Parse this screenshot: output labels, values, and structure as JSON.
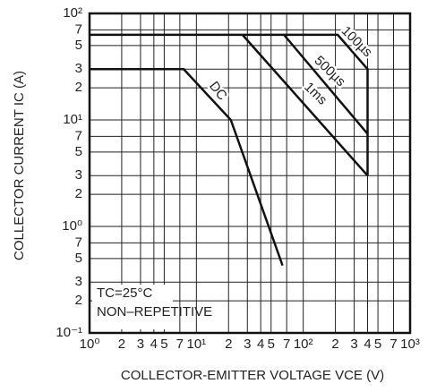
{
  "chart_data": {
    "type": "line",
    "x_label": "COLLECTOR-EMITTER VOLTAGE   VCE (V)",
    "y_label": "COLLECTOR CURRENT   IC (A)",
    "annotations": [
      "TC=25°C",
      "NON–REPETITIVE"
    ],
    "xscale": "log",
    "yscale": "log",
    "grid": true,
    "color": "#111111",
    "xlim": [
      1,
      1000
    ],
    "ylim": [
      0.1,
      100
    ],
    "xticks": [
      {
        "value": 1,
        "label": "10⁰"
      },
      2,
      3,
      4,
      5,
      7,
      {
        "value": 10,
        "label": "10¹"
      },
      {
        "value": 20,
        "label": "2"
      },
      {
        "value": 30,
        "label": "3"
      },
      {
        "value": 40,
        "label": "4"
      },
      {
        "value": 50,
        "label": "5"
      },
      {
        "value": 70,
        "label": "7"
      },
      {
        "value": 100,
        "label": "10²"
      },
      {
        "value": 200,
        "label": "2"
      },
      {
        "value": 300,
        "label": "3"
      },
      {
        "value": 400,
        "label": "4"
      },
      {
        "value": 500,
        "label": "5"
      },
      {
        "value": 700,
        "label": "7"
      },
      {
        "value": 1000,
        "label": "10³"
      }
    ],
    "yticks": [
      {
        "value": 0.1,
        "label": "10⁻¹"
      },
      {
        "value": 0.2,
        "label": "2"
      },
      {
        "value": 0.3,
        "label": "3"
      },
      {
        "value": 0.5,
        "label": "5"
      },
      {
        "value": 0.7,
        "label": "7"
      },
      {
        "value": 1,
        "label": "10⁰"
      },
      2,
      3,
      5,
      7,
      {
        "value": 10,
        "label": "10¹"
      },
      {
        "value": 20,
        "label": "2"
      },
      {
        "value": 30,
        "label": "3"
      },
      {
        "value": 50,
        "label": "5"
      },
      {
        "value": 70,
        "label": "7"
      },
      {
        "value": 100,
        "label": "10²"
      }
    ],
    "series": [
      {
        "name": "DC",
        "x": [
          1,
          7.6,
          21,
          64
        ],
        "values": [
          30,
          30,
          10,
          0.43
        ]
      },
      {
        "name": "1ms",
        "x": [
          27,
          400
        ],
        "values": [
          63,
          3
        ]
      },
      {
        "name": "500µs",
        "x": [
          66,
          400
        ],
        "values": [
          63,
          7.4
        ]
      },
      {
        "name": "100µs",
        "x": [
          1,
          210,
          400,
          400
        ],
        "values": [
          63,
          63,
          30,
          3
        ]
      }
    ]
  }
}
